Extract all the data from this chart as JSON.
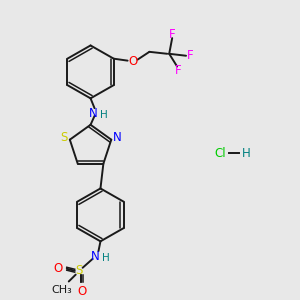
{
  "bg_color": "#e8e8e8",
  "bond_color": "#1a1a1a",
  "atom_colors": {
    "N": "#0000ff",
    "O": "#ff0000",
    "S": "#cccc00",
    "F": "#ff00ff",
    "H": "#008080",
    "Cl": "#00cc00"
  },
  "lw": 1.4,
  "lw_inner": 1.1
}
